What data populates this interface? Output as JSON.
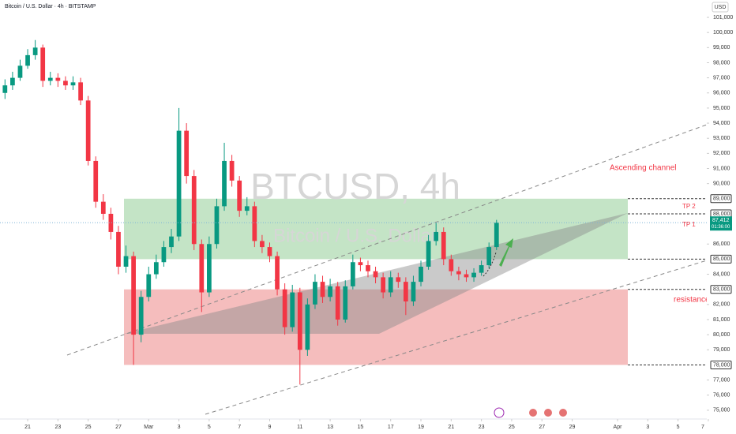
{
  "chart_data": {
    "type": "candlestick",
    "title": "Bitcoin / U.S. Dollar · 4h · BITSTAMP",
    "watermark": "BTCUSD, 4h",
    "watermark_subtitle": "Bitcoin / U.S. Dollar",
    "currency": "USD",
    "annotations": {
      "tp2": "TP 2",
      "tp1": "TP 1",
      "resistance": "resistance",
      "channel": "Ascending channel"
    },
    "x": [
      -1.5,
      -1,
      -0.5,
      0,
      0.5,
      1,
      1.5,
      2,
      2.5,
      3,
      3.5,
      4,
      4.5,
      5,
      5.5,
      6,
      6.5,
      7,
      7.5,
      8,
      8.5,
      9,
      9.5,
      10,
      10.5,
      11,
      11.5,
      12,
      12.5,
      13,
      13.5,
      14,
      14.5,
      15,
      15.5,
      16,
      16.5,
      17,
      17.5,
      18,
      18.5,
      19,
      19.5,
      20,
      20.5,
      21,
      21.5,
      22,
      22.5,
      23,
      23.5,
      24,
      24.5,
      25,
      25.5,
      26,
      26.5,
      27,
      27.5,
      28,
      28.5,
      29,
      29.5,
      30,
      30.5,
      31
    ],
    "open": [
      96000,
      96500,
      97000,
      97800,
      98500,
      99000,
      96800,
      97000,
      96800,
      96500,
      96700,
      95500,
      91500,
      88800,
      88000,
      86800,
      84500,
      85200,
      80000,
      82500,
      84000,
      84800,
      85800,
      86500,
      93500,
      90500,
      86000,
      82800,
      86000,
      88500,
      91500,
      90200,
      88200,
      88500,
      86200,
      85800,
      85200,
      83000,
      80500,
      82800,
      79000,
      82000,
      83500,
      82500,
      83200,
      81000,
      83200,
      84800,
      84600,
      84200,
      83800,
      82800,
      83800,
      83500,
      82200,
      83500,
      84500,
      86200,
      86800,
      85000,
      84200,
      84000,
      83800,
      84100,
      84600,
      85800
    ],
    "high": [
      96900,
      97400,
      98200,
      98900,
      99500,
      99200,
      97400,
      97300,
      97100,
      97100,
      97000,
      95800,
      91800,
      89300,
      88400,
      87200,
      85900,
      85500,
      82900,
      84500,
      85300,
      86200,
      87000,
      95000,
      94000,
      90900,
      86300,
      86500,
      89000,
      92700,
      91900,
      90500,
      89100,
      88800,
      86600,
      86100,
      85500,
      83400,
      83300,
      83100,
      82400,
      84000,
      83900,
      83700,
      83500,
      83600,
      85300,
      85100,
      84900,
      84500,
      84100,
      84200,
      84100,
      83800,
      83900,
      84900,
      86600,
      87400,
      87100,
      85300,
      84500,
      84300,
      84400,
      84900,
      86100,
      87600
    ],
    "low": [
      95600,
      96200,
      96800,
      97600,
      98200,
      96400,
      96500,
      96400,
      96200,
      96200,
      95200,
      91200,
      88400,
      87600,
      86300,
      84000,
      84100,
      78000,
      79500,
      82200,
      83700,
      84500,
      85400,
      86200,
      90000,
      85600,
      81500,
      82500,
      85700,
      88200,
      89800,
      87800,
      87900,
      85800,
      85400,
      84800,
      82600,
      80000,
      80200,
      76700,
      78600,
      81700,
      82100,
      82200,
      80600,
      80800,
      83000,
      84200,
      83800,
      83400,
      82400,
      82500,
      83100,
      81300,
      81900,
      83200,
      84300,
      85900,
      84600,
      83900,
      83600,
      83500,
      83500,
      83900,
      84400,
      85600
    ],
    "close": [
      96500,
      97000,
      97800,
      98500,
      99000,
      96800,
      97000,
      96800,
      96500,
      96700,
      95500,
      91500,
      88800,
      88000,
      86800,
      84500,
      85200,
      80000,
      82500,
      84000,
      84800,
      85800,
      86500,
      93500,
      90500,
      86000,
      82800,
      86000,
      88500,
      91500,
      90200,
      88200,
      88500,
      86200,
      85800,
      85200,
      83000,
      80500,
      82800,
      79000,
      82000,
      83500,
      82500,
      83200,
      81000,
      83200,
      84800,
      84600,
      84200,
      83800,
      82800,
      83800,
      83500,
      82200,
      83500,
      84500,
      86200,
      86800,
      85000,
      84200,
      84000,
      83800,
      84100,
      84600,
      85800,
      87412
    ],
    "up_color": "#089981",
    "down_color": "#f23645",
    "last_price": {
      "value": 87412,
      "label": "87,412"
    },
    "countdown": "01:36:00",
    "zones": [
      {
        "from": 85000,
        "to": 89000,
        "color": "#a5d6a7"
      },
      {
        "from": 78000,
        "to": 83000,
        "color": "#ef9a9a"
      }
    ],
    "levels": [
      {
        "value": 89000,
        "label": "89,000"
      },
      {
        "value": 88000,
        "label": "88,000"
      },
      {
        "value": 85000,
        "label": "85,000"
      },
      {
        "value": 83000,
        "label": "83,000"
      },
      {
        "value": 78000,
        "label": "78,000"
      }
    ],
    "xlim": [
      -1.83,
      44.9
    ],
    "xticks": [
      {
        "value": 0,
        "label": "21"
      },
      {
        "value": 2,
        "label": "23"
      },
      {
        "value": 4,
        "label": "25"
      },
      {
        "value": 6,
        "label": "27"
      },
      {
        "value": 8,
        "label": "Mar"
      },
      {
        "value": 10,
        "label": "3"
      },
      {
        "value": 12,
        "label": "5"
      },
      {
        "value": 14,
        "label": "7"
      },
      {
        "value": 16,
        "label": "9"
      },
      {
        "value": 18,
        "label": "11"
      },
      {
        "value": 20,
        "label": "13"
      },
      {
        "value": 22,
        "label": "15"
      },
      {
        "value": 24,
        "label": "17"
      },
      {
        "value": 26,
        "label": "19"
      },
      {
        "value": 28,
        "label": "21"
      },
      {
        "value": 30,
        "label": "23"
      },
      {
        "value": 32,
        "label": "25"
      },
      {
        "value": 34,
        "label": "27"
      },
      {
        "value": 36,
        "label": "29"
      },
      {
        "value": 39,
        "label": "Apr"
      },
      {
        "value": 41,
        "label": "3"
      },
      {
        "value": 43,
        "label": "5"
      },
      {
        "value": 45,
        "label": "7"
      }
    ],
    "ylim": [
      74420,
      102150
    ],
    "yticks": [
      {
        "value": 101000,
        "label": "101,000"
      },
      {
        "value": 100000,
        "label": "100,000"
      },
      {
        "value": 99000,
        "label": "99,000"
      },
      {
        "value": 98000,
        "label": "98,000"
      },
      {
        "value": 97000,
        "label": "97,000"
      },
      {
        "value": 96000,
        "label": "96,000"
      },
      {
        "value": 95000,
        "label": "95,000"
      },
      {
        "value": 94000,
        "label": "94,000"
      },
      {
        "value": 93000,
        "label": "93,000"
      },
      {
        "value": 92000,
        "label": "92,000"
      },
      {
        "value": 91000,
        "label": "91,000"
      },
      {
        "value": 90000,
        "label": "90,000"
      },
      {
        "value": 86000,
        "label": "86,000"
      },
      {
        "value": 84000,
        "label": "84,000"
      },
      {
        "value": 82000,
        "label": "82,000"
      },
      {
        "value": 81000,
        "label": "81,000"
      },
      {
        "value": 80000,
        "label": "80,000"
      },
      {
        "value": 79000,
        "label": "79,000"
      },
      {
        "value": 77000,
        "label": "77,000"
      },
      {
        "value": 76000,
        "label": "76,000"
      },
      {
        "value": 75000,
        "label": "75,000"
      }
    ],
    "grid": false
  }
}
